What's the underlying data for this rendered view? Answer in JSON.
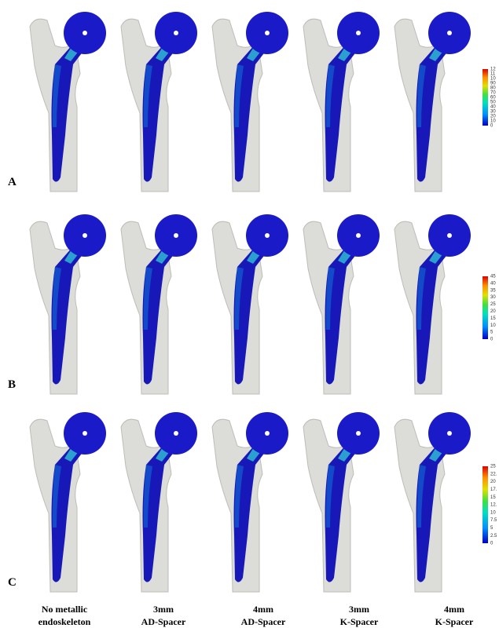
{
  "panels": [
    {
      "label": "A",
      "scale": [
        "12",
        "11",
        "10",
        "90",
        "80",
        "70",
        "60",
        "50",
        "40",
        "30",
        "20",
        "10",
        "0"
      ]
    },
    {
      "label": "B",
      "scale": [
        "45",
        "40",
        "35",
        "30",
        "25",
        "20",
        "15",
        "10",
        "5",
        "0"
      ]
    },
    {
      "label": "C",
      "scale": [
        "25",
        "22.",
        "20",
        "17.",
        "15",
        "12.",
        "10",
        "7.5",
        "5",
        "2.5",
        "0"
      ]
    }
  ],
  "columns": [
    {
      "line1": "No metallic",
      "line2": "endoskeleton"
    },
    {
      "line1": "3mm",
      "line2": "AD-Spacer"
    },
    {
      "line1": "4mm",
      "line2": "AD-Spacer"
    },
    {
      "line1": "3mm",
      "line2": "K-Spacer"
    },
    {
      "line1": "4mm",
      "line2": "K-Spacer"
    }
  ]
}
